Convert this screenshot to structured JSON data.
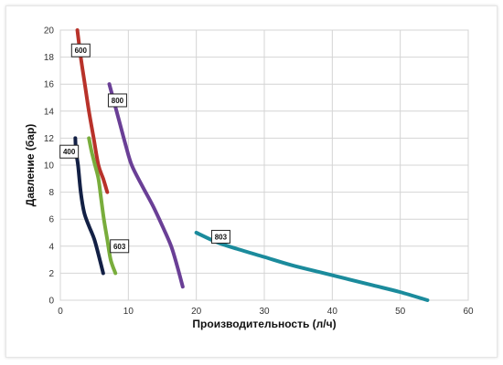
{
  "chart_data": {
    "type": "line",
    "title": "",
    "xlabel": "Производительность (л/ч)",
    "ylabel": "Давление (бар)",
    "xlim": [
      0,
      60
    ],
    "ylim": [
      0,
      20
    ],
    "xticks": [
      0,
      10,
      20,
      30,
      40,
      50,
      60
    ],
    "yticks": [
      0,
      2,
      4,
      6,
      8,
      10,
      12,
      14,
      16,
      18,
      20
    ],
    "grid": true,
    "legend": "inline labels",
    "series": [
      {
        "name": "600",
        "color": "#b8322a",
        "x": [
          2.5,
          3.0,
          3.6,
          4.2,
          4.9,
          5.6,
          6.3,
          6.9
        ],
        "y": [
          20,
          18,
          16,
          14,
          12,
          10,
          9,
          8
        ],
        "label_at": [
          3.0,
          18.5
        ]
      },
      {
        "name": "800",
        "color": "#6a3f96",
        "x": [
          7.2,
          8.0,
          8.8,
          9.6,
          10.5,
          12.0,
          13.6,
          15.0,
          16.3,
          17.2,
          18.0
        ],
        "y": [
          16,
          14.5,
          13,
          11.5,
          10,
          8.5,
          7,
          5.5,
          4,
          2.5,
          1
        ],
        "label_at": [
          8.4,
          14.8
        ]
      },
      {
        "name": "400",
        "color": "#132045",
        "x": [
          2.2,
          2.3,
          2.6,
          3.0,
          3.5,
          4.2,
          5.0,
          5.8,
          6.3
        ],
        "y": [
          12,
          11,
          10,
          8,
          6.5,
          5.5,
          4.5,
          3,
          2
        ],
        "label_at": [
          1.3,
          11.0
        ]
      },
      {
        "name": "603",
        "color": "#79ad3c",
        "x": [
          4.2,
          4.6,
          5.1,
          5.6,
          6.0,
          6.4,
          6.9,
          7.4,
          8.1
        ],
        "y": [
          12,
          11,
          10,
          9,
          7.5,
          6,
          4.5,
          3,
          2
        ],
        "label_at": [
          8.7,
          4.0
        ]
      },
      {
        "name": "803",
        "color": "#1b8b9c",
        "x": [
          20,
          23,
          26,
          30,
          34,
          38,
          42,
          46,
          50,
          54
        ],
        "y": [
          5,
          4.3,
          3.8,
          3.2,
          2.6,
          2.1,
          1.6,
          1.1,
          0.6,
          0
        ],
        "label_at": [
          23.6,
          4.7
        ]
      }
    ]
  }
}
